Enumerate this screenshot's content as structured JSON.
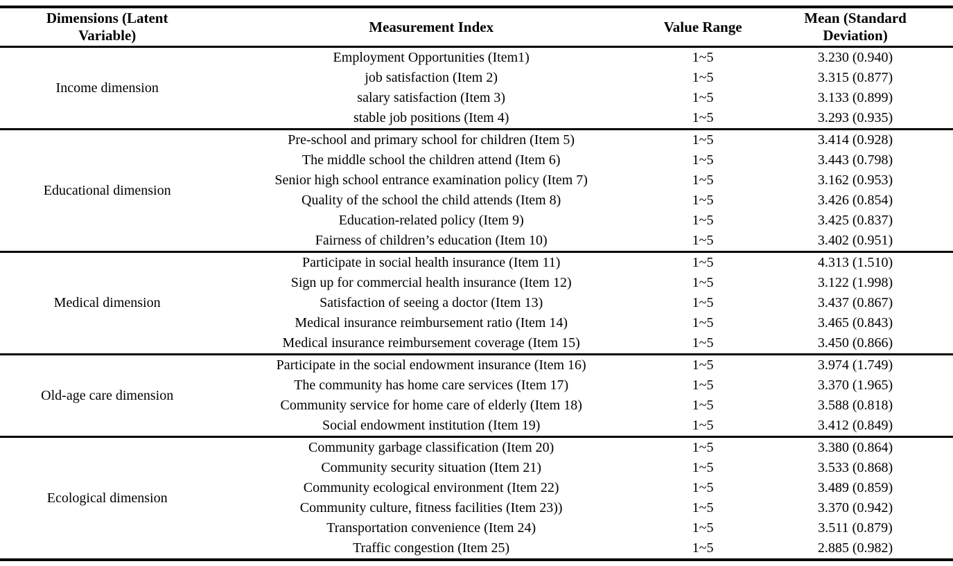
{
  "colors": {
    "text": "#000000",
    "background": "#ffffff",
    "rule": "#000000"
  },
  "table": {
    "header": {
      "col1": [
        "Dimensions (Latent",
        "Variable)"
      ],
      "col2": [
        "Measurement Index"
      ],
      "col3": [
        "Value Range"
      ],
      "col4": [
        "Mean (Standard",
        "Deviation)"
      ]
    },
    "sections": [
      {
        "dimension": "Income dimension",
        "rows": [
          {
            "index": "Employment Opportunities (Item1)",
            "range": "1~5",
            "mean_sd": "3.230 (0.940)"
          },
          {
            "index": "job satisfaction (Item 2)",
            "range": "1~5",
            "mean_sd": "3.315 (0.877)"
          },
          {
            "index": "salary satisfaction (Item 3)",
            "range": "1~5",
            "mean_sd": "3.133 (0.899)"
          },
          {
            "index": "stable job positions (Item 4)",
            "range": "1~5",
            "mean_sd": "3.293 (0.935)"
          }
        ]
      },
      {
        "dimension": "Educational dimension",
        "rows": [
          {
            "index": "Pre-school and primary school for children (Item 5)",
            "range": "1~5",
            "mean_sd": "3.414 (0.928)"
          },
          {
            "index": "The middle school the children attend (Item 6)",
            "range": "1~5",
            "mean_sd": "3.443 (0.798)"
          },
          {
            "index": "Senior high school entrance examination policy (Item 7)",
            "range": "1~5",
            "mean_sd": "3.162 (0.953)"
          },
          {
            "index": "Quality of the school the child attends (Item 8)",
            "range": "1~5",
            "mean_sd": "3.426 (0.854)"
          },
          {
            "index": "Education-related policy (Item 9)",
            "range": "1~5",
            "mean_sd": "3.425 (0.837)"
          },
          {
            "index": "Fairness of children’s education (Item 10)",
            "range": "1~5",
            "mean_sd": "3.402 (0.951)"
          }
        ]
      },
      {
        "dimension": "Medical dimension",
        "rows": [
          {
            "index": "Participate in social health insurance (Item 11)",
            "range": "1~5",
            "mean_sd": "4.313 (1.510)"
          },
          {
            "index": "Sign up for commercial health insurance (Item 12)",
            "range": "1~5",
            "mean_sd": "3.122 (1.998)"
          },
          {
            "index": "Satisfaction of seeing a doctor (Item 13)",
            "range": "1~5",
            "mean_sd": "3.437 (0.867)"
          },
          {
            "index": "Medical insurance reimbursement ratio (Item 14)",
            "range": "1~5",
            "mean_sd": "3.465 (0.843)"
          },
          {
            "index": "Medical insurance reimbursement coverage (Item 15)",
            "range": "1~5",
            "mean_sd": "3.450 (0.866)"
          }
        ]
      },
      {
        "dimension": "Old-age care dimension",
        "rows": [
          {
            "index": "Participate in the social endowment insurance (Item 16)",
            "range": "1~5",
            "mean_sd": "3.974 (1.749)"
          },
          {
            "index": "The community has home care services (Item 17)",
            "range": "1~5",
            "mean_sd": "3.370 (1.965)"
          },
          {
            "index": "Community service for home care of elderly (Item 18)",
            "range": "1~5",
            "mean_sd": "3.588 (0.818)"
          },
          {
            "index": "Social endowment institution (Item 19)",
            "range": "1~5",
            "mean_sd": "3.412 (0.849)"
          }
        ]
      },
      {
        "dimension": "Ecological dimension",
        "rows": [
          {
            "index": "Community garbage classification (Item 20)",
            "range": "1~5",
            "mean_sd": "3.380 (0.864)"
          },
          {
            "index": "Community security situation (Item 21)",
            "range": "1~5",
            "mean_sd": "3.533 (0.868)"
          },
          {
            "index": "Community ecological environment (Item 22)",
            "range": "1~5",
            "mean_sd": "3.489 (0.859)"
          },
          {
            "index": "Community culture, fitness facilities (Item 23))",
            "range": "1~5",
            "mean_sd": "3.370 (0.942)"
          },
          {
            "index": "Transportation convenience (Item 24)",
            "range": "1~5",
            "mean_sd": "3.511 (0.879)"
          },
          {
            "index": "Traffic congestion (Item 25)",
            "range": "1~5",
            "mean_sd": "2.885 (0.982)"
          }
        ]
      }
    ]
  }
}
